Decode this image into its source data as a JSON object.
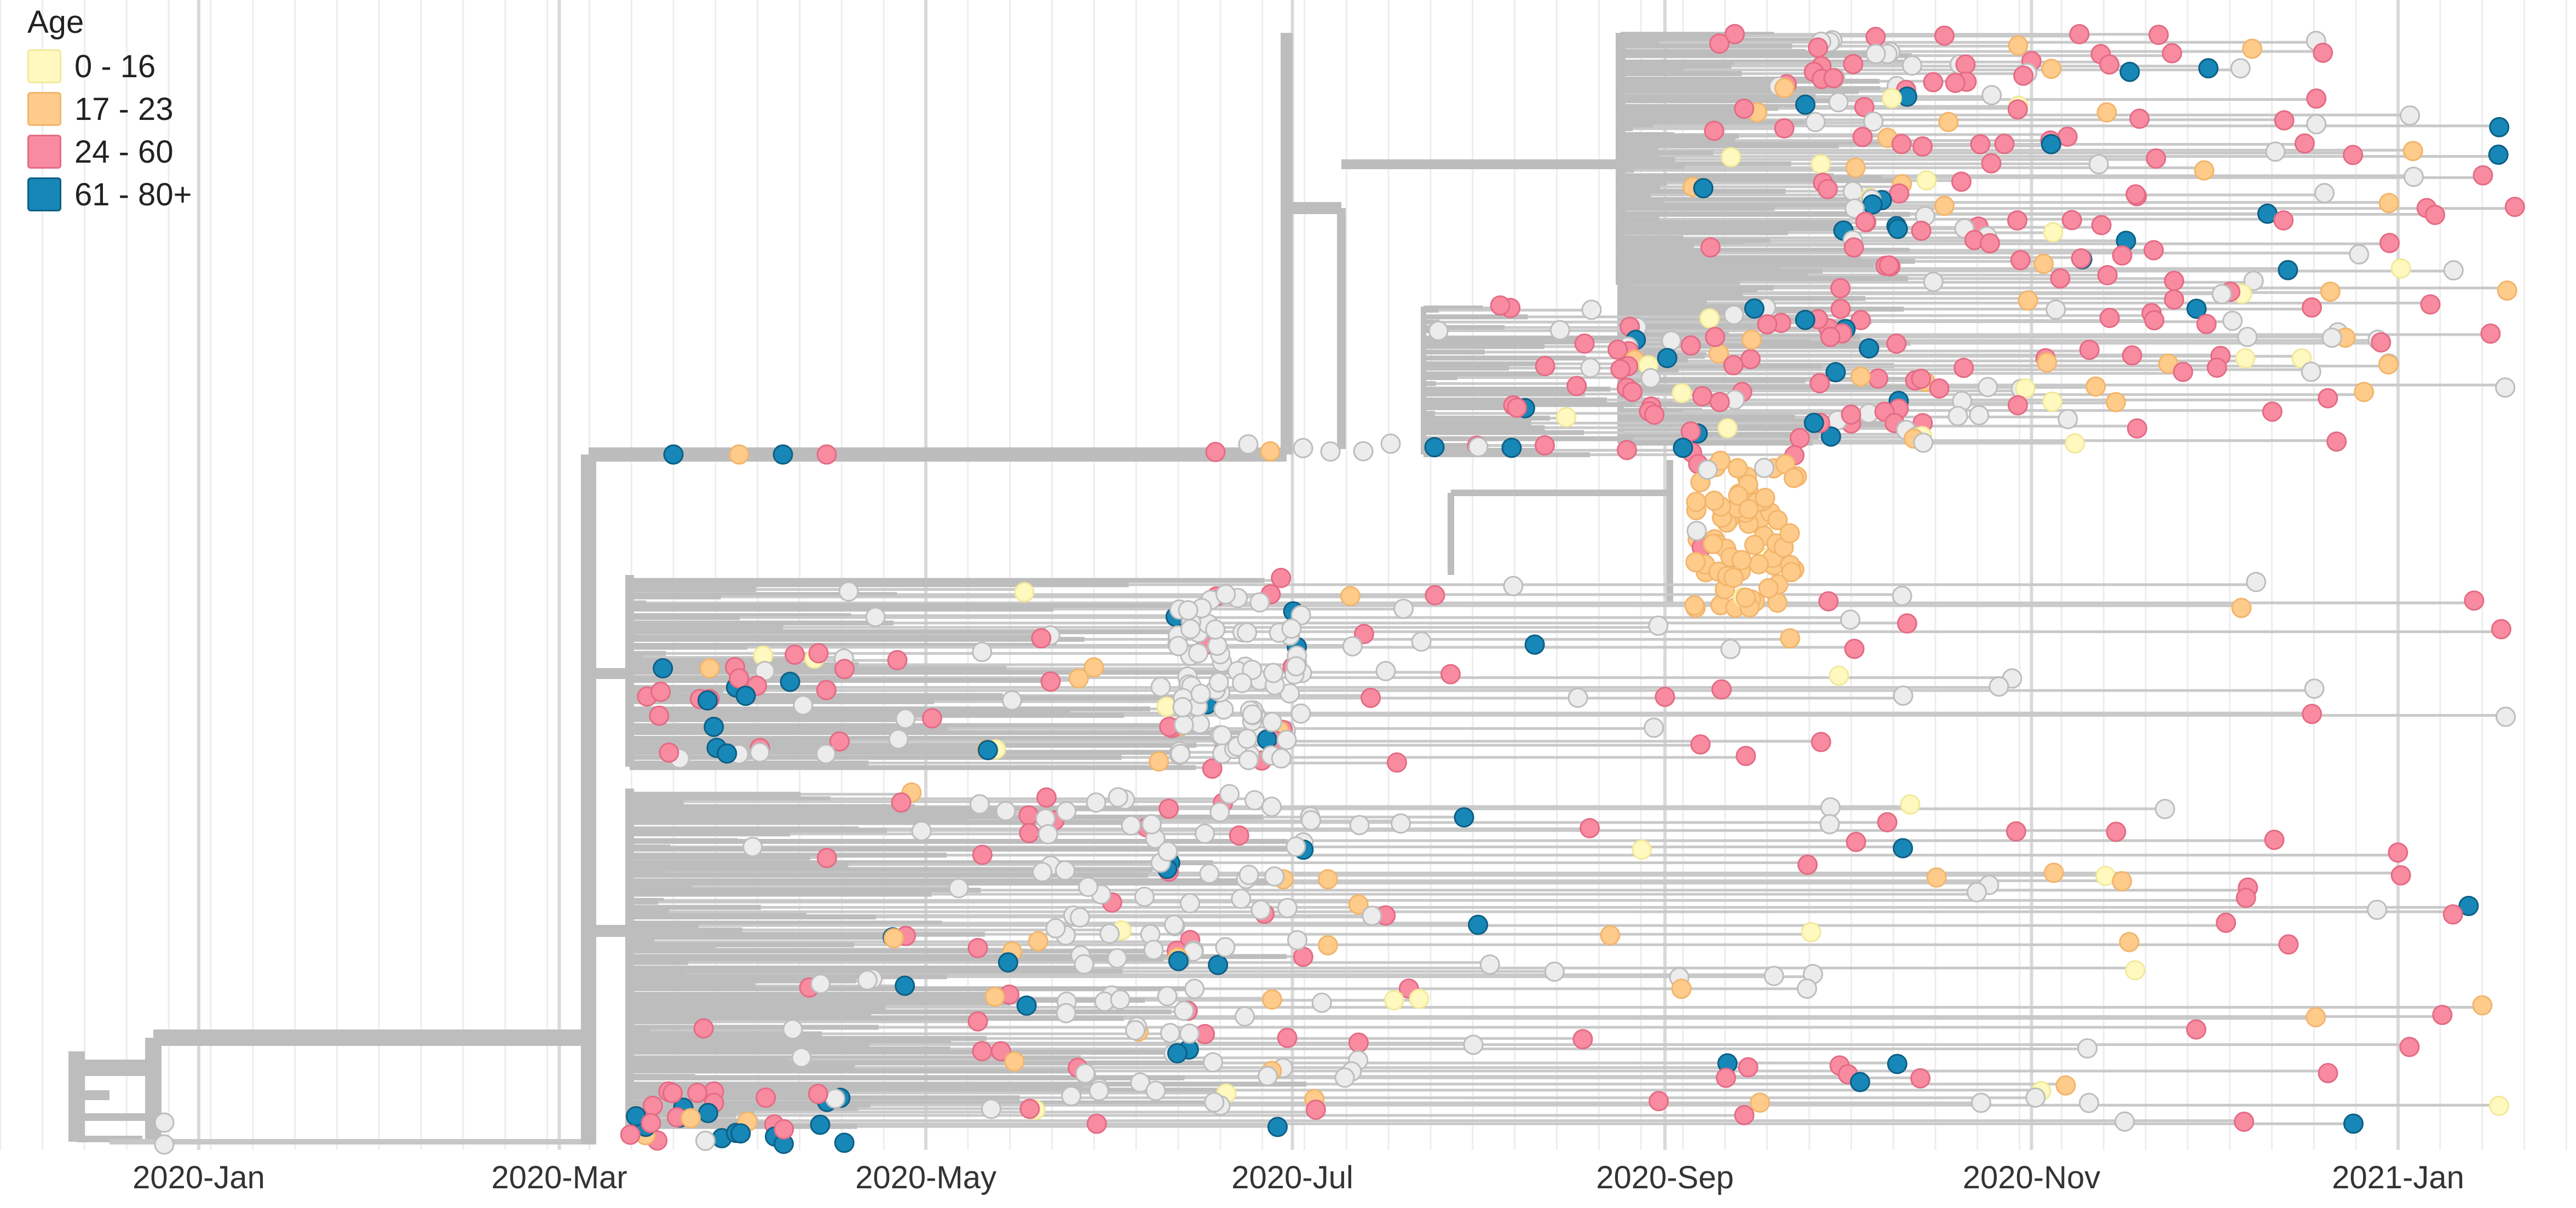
{
  "chart_data": {
    "type": "scatter",
    "subtype": "time-scaled phylogenetic tree",
    "xlim": [
      "2019-11-15",
      "2021-02-28"
    ],
    "x_tick_labels": [
      {
        "date": "2020-01-01",
        "label": "2020-Jan"
      },
      {
        "date": "2020-03-01",
        "label": "2020-Mar"
      },
      {
        "date": "2020-05-01",
        "label": "2020-May"
      },
      {
        "date": "2020-07-01",
        "label": "2020-Jul"
      },
      {
        "date": "2020-09-01",
        "label": "2020-Sep"
      },
      {
        "date": "2020-11-01",
        "label": "2020-Nov"
      },
      {
        "date": "2021-01-01",
        "label": "2021-Jan"
      }
    ],
    "minor_gridlines": "weekly",
    "branch_color": "#bdbdbd",
    "legend": {
      "title": "Age",
      "placement": "top-left",
      "items": [
        {
          "label": "0 - 16",
          "color": "#fff9bf",
          "border": "#f1e99a"
        },
        {
          "label": "17 - 23",
          "color": "#fecb8a",
          "border": "#f2b56c"
        },
        {
          "label": "24 - 60",
          "color": "#f98ba0",
          "border": "#e46b84"
        },
        {
          "label": "61 - 80+",
          "color": "#1787b7",
          "border": "#0d5f85"
        }
      ]
    },
    "missing_color": "#ececec"
  }
}
